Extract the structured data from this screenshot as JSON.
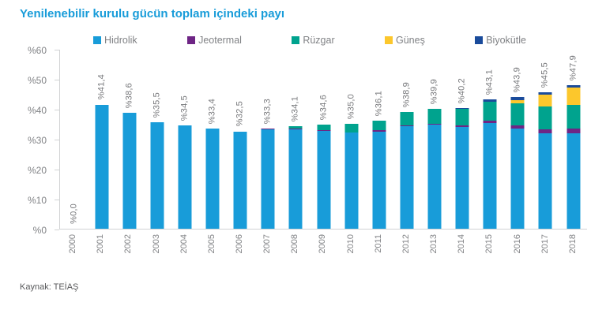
{
  "title": "Yenilenebilir kurulu gücün toplam içindeki payı",
  "source": "Kaynak: TEİAŞ",
  "colors": {
    "title": "#189CD9",
    "axis_line": "#D1D3D4",
    "axis_text": "#808285",
    "value_label_text": "#77787B",
    "source_text": "#58595B"
  },
  "chart_data": {
    "type": "bar",
    "stacked": true,
    "title": "Yenilenebilir kurulu gücün toplam içindeki payı",
    "xlabel": "",
    "ylabel": "",
    "ylim": [
      0,
      60
    ],
    "grid": false,
    "legend_position": "top",
    "categories": [
      "2000",
      "2001",
      "2002",
      "2003",
      "2004",
      "2005",
      "2006",
      "2007",
      "2008",
      "2009",
      "2010",
      "2011",
      "2012",
      "2013",
      "2014",
      "2015",
      "2016",
      "2017",
      "2018"
    ],
    "totals": [
      0.0,
      41.4,
      38.6,
      35.5,
      34.5,
      33.4,
      32.5,
      33.3,
      34.1,
      34.6,
      35.0,
      36.1,
      38.9,
      39.9,
      40.2,
      43.1,
      43.9,
      45.5,
      47.9
    ],
    "totals_labels": [
      "%0,0",
      "%41,4",
      "%38,6",
      "%35,5",
      "%34,5",
      "%33,4",
      "%32,5",
      "%33,3",
      "%34,1",
      "%34,6",
      "%35,0",
      "%36,1",
      "%38,9",
      "%39,9",
      "%40,2",
      "%43,1",
      "%43,9",
      "%45,5",
      "%47,9"
    ],
    "y_ticks": [
      {
        "label": "%0",
        "value": 0
      },
      {
        "label": "%10",
        "value": 10
      },
      {
        "label": "%20",
        "value": 20
      },
      {
        "label": "%30",
        "value": 30
      },
      {
        "label": "%40",
        "value": 40
      },
      {
        "label": "%50",
        "value": 50
      },
      {
        "label": "%60",
        "value": 60
      }
    ],
    "series": [
      {
        "name": "Hidrolik",
        "key": "hidrolik",
        "color": "#189CD9",
        "values": [
          0,
          41.4,
          38.6,
          35.5,
          34.5,
          33.4,
          32.5,
          33.2,
          33.2,
          32.7,
          32.0,
          32.5,
          34.3,
          34.7,
          33.9,
          35.2,
          33.5,
          31.9,
          31.9
        ]
      },
      {
        "name": "Jeotermal",
        "key": "jeotermal",
        "color": "#6E2585",
        "values": [
          0,
          0,
          0,
          0,
          0,
          0,
          0,
          0.1,
          0.1,
          0.2,
          0.2,
          0.3,
          0.3,
          0.4,
          0.5,
          0.8,
          1.1,
          1.3,
          1.5
        ]
      },
      {
        "name": "Rüzgar",
        "key": "ruzgar",
        "color": "#00A38E",
        "values": [
          0,
          0,
          0,
          0,
          0,
          0,
          0,
          0,
          0.8,
          1.7,
          2.8,
          3.3,
          4.3,
          4.8,
          5.7,
          6.3,
          7.3,
          7.6,
          7.9
        ]
      },
      {
        "name": "Güneş",
        "key": "gunes",
        "color": "#FCC72C",
        "values": [
          0,
          0,
          0,
          0,
          0,
          0,
          0,
          0,
          0,
          0,
          0,
          0,
          0,
          0,
          0,
          0.2,
          1.1,
          4.0,
          5.7
        ]
      },
      {
        "name": "Biyokütle",
        "key": "biyokutle",
        "color": "#1A4B9B",
        "values": [
          0,
          0,
          0,
          0,
          0,
          0,
          0,
          0,
          0,
          0,
          0,
          0,
          0,
          0,
          0.1,
          0.6,
          0.9,
          0.7,
          0.9
        ]
      }
    ]
  }
}
